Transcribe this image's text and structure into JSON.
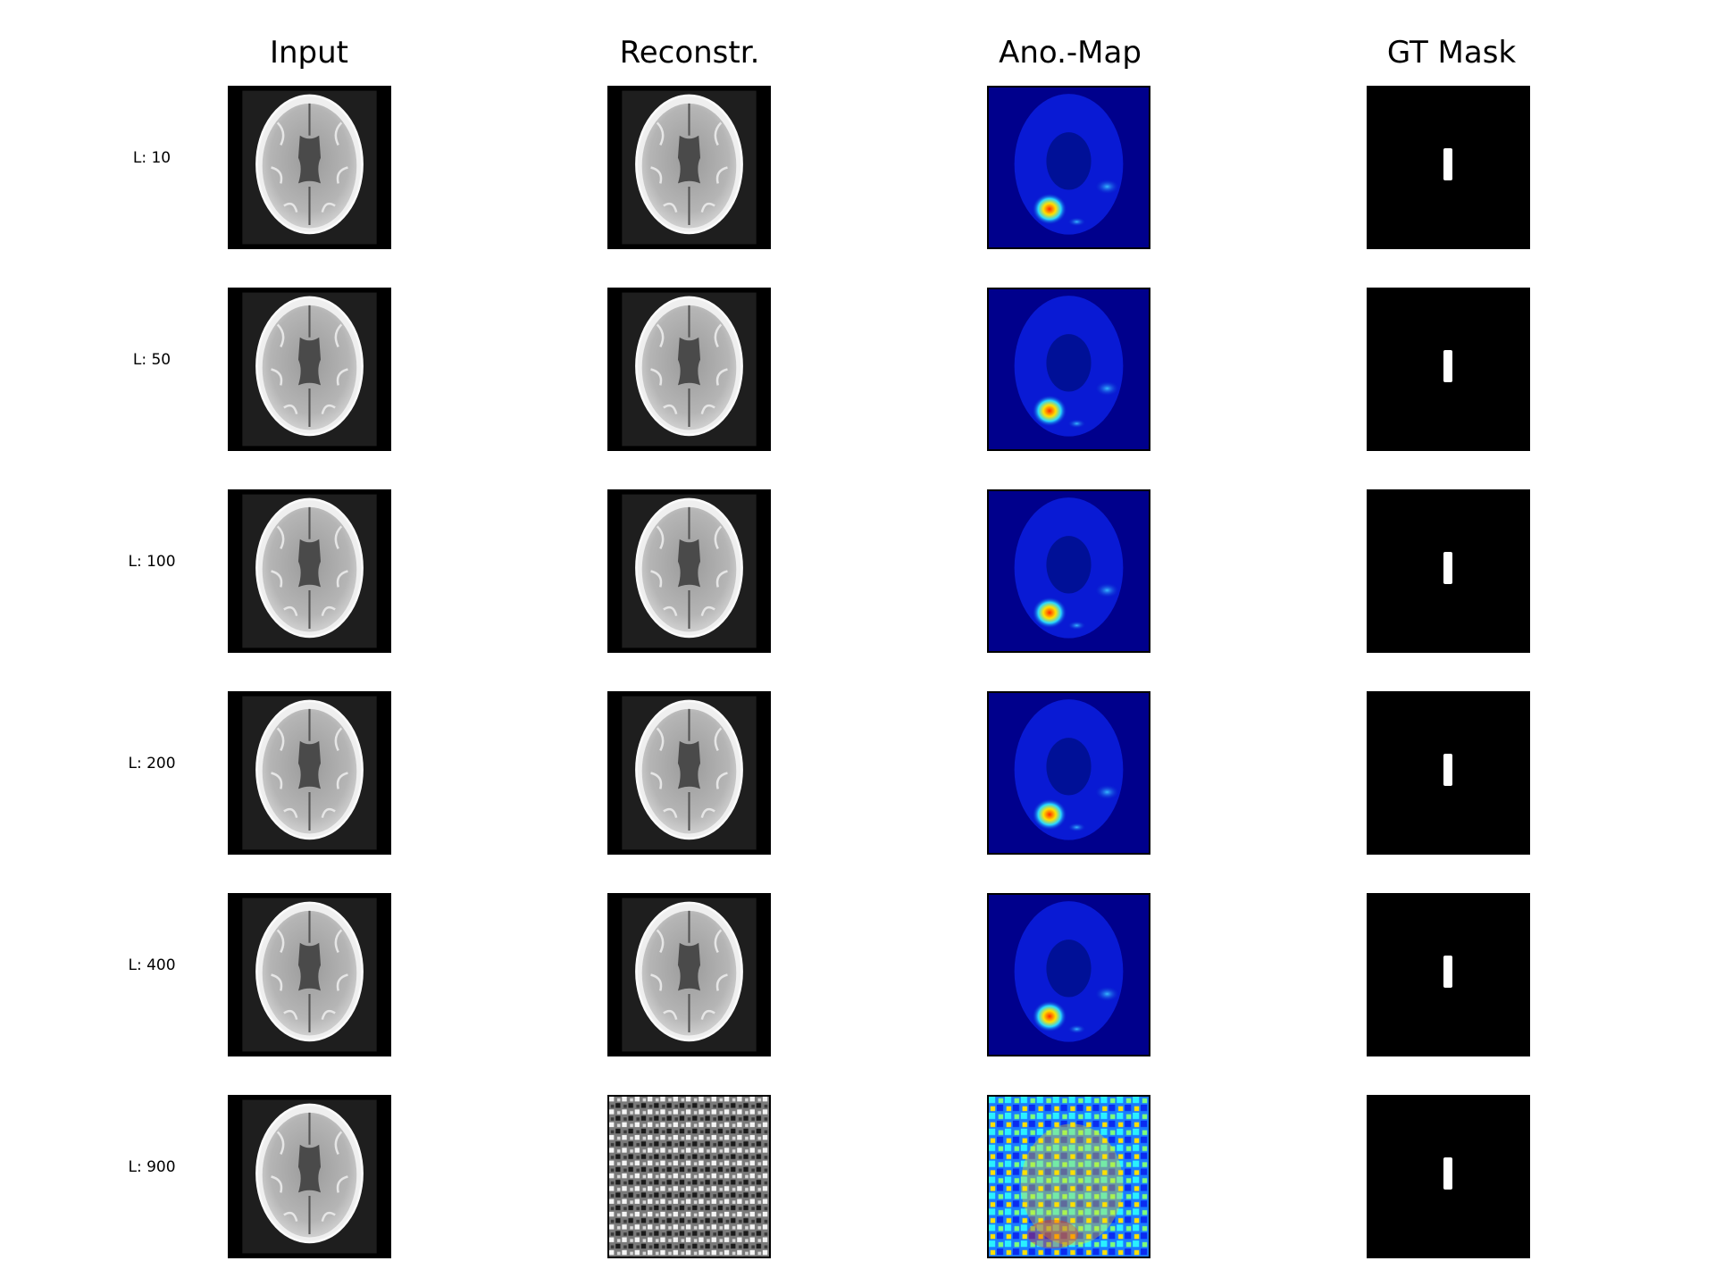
{
  "columns": {
    "input": "Input",
    "recon": "Reconstr.",
    "anomap": "Ano.-Map",
    "gtmask": "GT Mask"
  },
  "rows": [
    {
      "label": "L: 10"
    },
    {
      "label": "L: 50"
    },
    {
      "label": "L: 100"
    },
    {
      "label": "L: 200"
    },
    {
      "label": "L: 400"
    },
    {
      "label": "L: 900"
    }
  ]
}
